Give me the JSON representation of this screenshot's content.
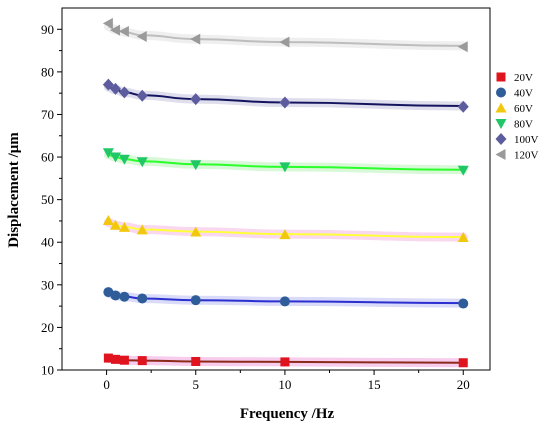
{
  "chart_data": {
    "type": "scatter",
    "xlabel": "Frequency  /Hz",
    "ylabel": "Displacement  /μm",
    "xlim": [
      -2.5,
      21.5
    ],
    "ylim": [
      10,
      95
    ],
    "x_ticks": [
      0,
      5,
      10,
      15,
      20
    ],
    "y_ticks": [
      10,
      20,
      30,
      40,
      50,
      60,
      70,
      80,
      90
    ],
    "legend_position": "right",
    "grid": false,
    "series": [
      {
        "name": "20V",
        "marker": "square",
        "color": "#e0141e",
        "x": [
          0.1,
          0.5,
          1,
          2,
          5,
          10,
          20
        ],
        "values": [
          12.8,
          12.5,
          12.3,
          12.2,
          12.0,
          11.9,
          11.7
        ],
        "fit": {
          "color": "#8b2a1a",
          "band_color": "#f3b6e4",
          "values": [
            12.7,
            12.5,
            12.3,
            12.2,
            12.0,
            11.9,
            11.7
          ]
        }
      },
      {
        "name": "40V",
        "marker": "circle",
        "color": "#2f5d99",
        "x": [
          0.1,
          0.5,
          1,
          2,
          5,
          10,
          20
        ],
        "values": [
          28.3,
          27.5,
          27.2,
          26.8,
          26.4,
          26.1,
          25.6
        ],
        "fit": {
          "color": "#2b2fd0",
          "band_color": "#c9ccf5",
          "values": [
            28.0,
            27.5,
            27.2,
            26.8,
            26.4,
            26.1,
            25.7
          ]
        }
      },
      {
        "name": "60V",
        "marker": "triangle-up",
        "color": "#f2c80f",
        "x": [
          0.1,
          0.5,
          1,
          2,
          5,
          10,
          20
        ],
        "values": [
          45.1,
          44.0,
          43.5,
          42.9,
          42.4,
          41.8,
          41.1
        ],
        "fit": {
          "color": "#ffff3a",
          "band_color": "#f7c7e8",
          "values": [
            44.6,
            44.0,
            43.6,
            43.0,
            42.5,
            41.9,
            41.2
          ]
        }
      },
      {
        "name": "80V",
        "marker": "triangle-down",
        "color": "#21c766",
        "x": [
          0.1,
          0.5,
          1,
          2,
          5,
          10,
          20
        ],
        "values": [
          61.0,
          60.0,
          59.5,
          58.9,
          58.2,
          57.7,
          56.9
        ],
        "fit": {
          "color": "#2aff2a",
          "band_color": "#c8f5c8",
          "values": [
            60.5,
            60.0,
            59.5,
            59.0,
            58.3,
            57.7,
            57.0
          ]
        }
      },
      {
        "name": "100V",
        "marker": "diamond",
        "color": "#5c5c9e",
        "x": [
          0.1,
          0.5,
          1,
          2,
          5,
          10,
          20
        ],
        "values": [
          77.0,
          76.0,
          75.2,
          74.4,
          73.6,
          72.8,
          71.8
        ],
        "fit": {
          "color": "#14145e",
          "band_color": "#d0d0e6",
          "values": [
            76.4,
            75.8,
            75.2,
            74.5,
            73.6,
            72.8,
            72.0
          ]
        }
      },
      {
        "name": "120V",
        "marker": "triangle-left",
        "color": "#9a9a9a",
        "x": [
          0.1,
          0.5,
          1,
          2,
          5,
          10,
          20
        ],
        "values": [
          91.4,
          89.8,
          89.5,
          88.3,
          87.7,
          87.0,
          85.9
        ],
        "fit": {
          "color": "#bdbdbd",
          "band_color": "#e8e8e8",
          "values": [
            90.6,
            89.9,
            89.3,
            88.6,
            87.7,
            87.0,
            86.1
          ]
        }
      }
    ]
  }
}
